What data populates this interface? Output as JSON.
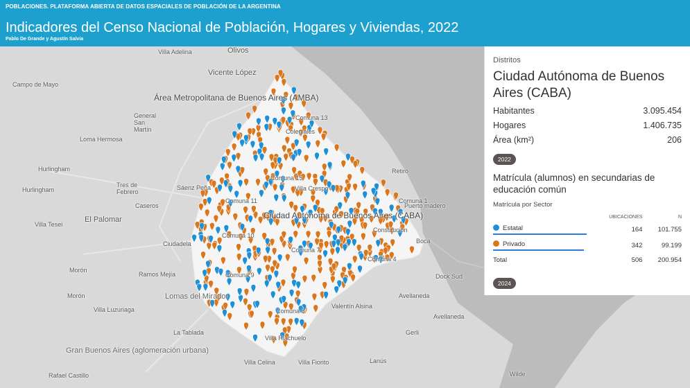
{
  "header": {
    "kicker": "POBLACIONES. PLATAFORMA ABIERTA DE DATOS ESPACIALES DE POBLACIÓN DE LA ARGENTINA",
    "title": "Indicadores del Censo Nacional de Población, Hogares y Viviendas, 2022",
    "authors": "Pablo De Grande y Agustín Salvia"
  },
  "colors": {
    "header": "#1ea0cf",
    "estatal": "#1f8fd6",
    "privado": "#d9771f"
  },
  "map_labels": [
    "Villa Adelina",
    "Olivos",
    "Vicente López",
    "Campo de Mayo",
    "Área Metropolitana de Buenos Aires (AMBA)",
    "General San Martín",
    "Loma Hermosa",
    "Comuna 13",
    "Colegiales",
    "Hurlingham",
    "Hurlingham",
    "Tres de Febrero",
    "Sáenz Peña",
    "Comuna 15",
    "Villa Crespo",
    "Retiro",
    "Caseros",
    "Comuna 11",
    "Comuna 1",
    "Puerto madero",
    "El Palomar",
    "Villa Tesei",
    "Ciudad Autónoma de Buenos Aires (CABA)",
    "Constitución",
    "Comuna 10",
    "Boca",
    "Ciudadela",
    "Comuna 7",
    "Comuna 4",
    "Morón",
    "Ramos Mejía",
    "Comuna 9",
    "Dock Sud",
    "Morón",
    "Lomas del Mirador",
    "Avellaneda",
    "Villa Luzuriaga",
    "Comuna 8",
    "Valentín Alsina",
    "Avellaneda",
    "La Tablada",
    "Villa Riachuelo",
    "Gerli",
    "Gran Buenos Aires (aglomeración urbana)",
    "Villa Celina",
    "Villa Fiorito",
    "Lanús",
    "Rafael Castillo",
    "Wilde"
  ],
  "panel": {
    "label": "Distritos",
    "name": "Ciudad Autónoma de Buenos Aires (CABA)",
    "stats": [
      {
        "label": "Habitantes",
        "value": "3.095.454"
      },
      {
        "label": "Hogares",
        "value": "1.406.735"
      },
      {
        "label": "Área (km²)",
        "value": "206"
      }
    ],
    "year1": "2022",
    "section_title": "Matrícula (alumnos) en secundarias de educación común",
    "section_sub": "Matrícula por Sector",
    "col_ubic": "UBICACIONES",
    "col_n": "N",
    "rows": [
      {
        "name": "Estatal",
        "ubic": "164",
        "n": "101.755",
        "share": 0.506
      },
      {
        "name": "Privado",
        "ubic": "342",
        "n": "99.199",
        "share": 0.494
      },
      {
        "name": "Total",
        "ubic": "506",
        "n": "200.954"
      }
    ],
    "year2": "2024"
  }
}
